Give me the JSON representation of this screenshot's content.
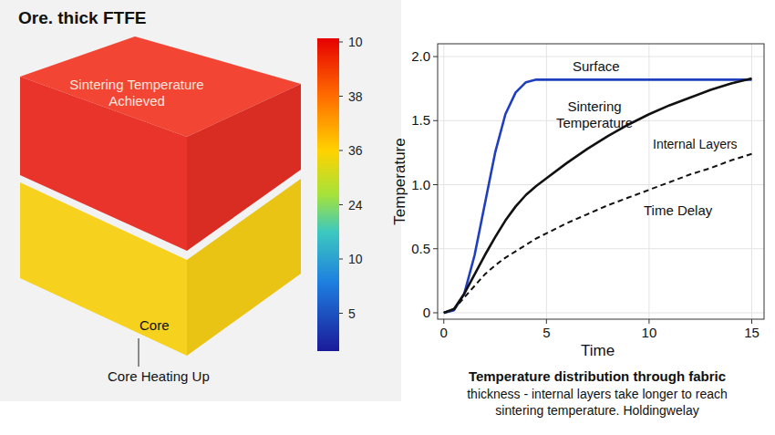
{
  "illustration": {
    "title": "Ore. thick FTFE",
    "labels": {
      "top": "Sintering Temperature Achieved",
      "core": "Core",
      "core_caption": "Core Heating Up"
    },
    "colorbar_labels": [
      "10",
      "38",
      "36",
      "24",
      "10",
      "5"
    ]
  },
  "chart_data": {
    "type": "line",
    "title": "Temperature distribution through fabric",
    "subtitle": "thickness - internal layers take longer to reach sintering temperature. Holdingwelay",
    "x_label": "Time",
    "y_label": "Temperature",
    "x": [
      0,
      0.5,
      1,
      1.5,
      2,
      2.5,
      3,
      3.5,
      4,
      4.5,
      5,
      6,
      7,
      8,
      9,
      10,
      11,
      12,
      13,
      14,
      15
    ],
    "series": [
      {
        "name": "Surface",
        "color": "#1f3fbf",
        "line_style": "solid",
        "marker": "none",
        "values": [
          0,
          0.02,
          0.15,
          0.45,
          0.85,
          1.25,
          1.55,
          1.72,
          1.8,
          1.82,
          1.82,
          1.82,
          1.82,
          1.82,
          1.82,
          1.82,
          1.82,
          1.82,
          1.82,
          1.82,
          1.82
        ]
      },
      {
        "name": "Sintering Temperature",
        "color": "#111111",
        "line_style": "solid",
        "marker": "none",
        "values": [
          0,
          0.03,
          0.15,
          0.3,
          0.45,
          0.59,
          0.72,
          0.83,
          0.92,
          0.99,
          1.05,
          1.17,
          1.28,
          1.38,
          1.47,
          1.55,
          1.62,
          1.68,
          1.74,
          1.79,
          1.83
        ]
      },
      {
        "name": "Internal Layers",
        "color": "#111111",
        "line_style": "dashed",
        "marker": "none",
        "values": [
          0,
          0.03,
          0.12,
          0.21,
          0.3,
          0.37,
          0.43,
          0.48,
          0.53,
          0.58,
          0.62,
          0.7,
          0.77,
          0.84,
          0.9,
          0.96,
          1.02,
          1.08,
          1.13,
          1.19,
          1.24
        ]
      }
    ],
    "annotations": [
      "Time Delay"
    ],
    "xlim": [
      -0.3,
      15.6
    ],
    "ylim": [
      -0.05,
      2.1
    ],
    "xticks": [
      0,
      5,
      10,
      15
    ],
    "yticks": [
      0,
      0.5,
      {
        "value": 1,
        "label": "1.0"
      },
      1.5,
      {
        "value": 2,
        "label": "2.0"
      }
    ],
    "grid": true
  }
}
